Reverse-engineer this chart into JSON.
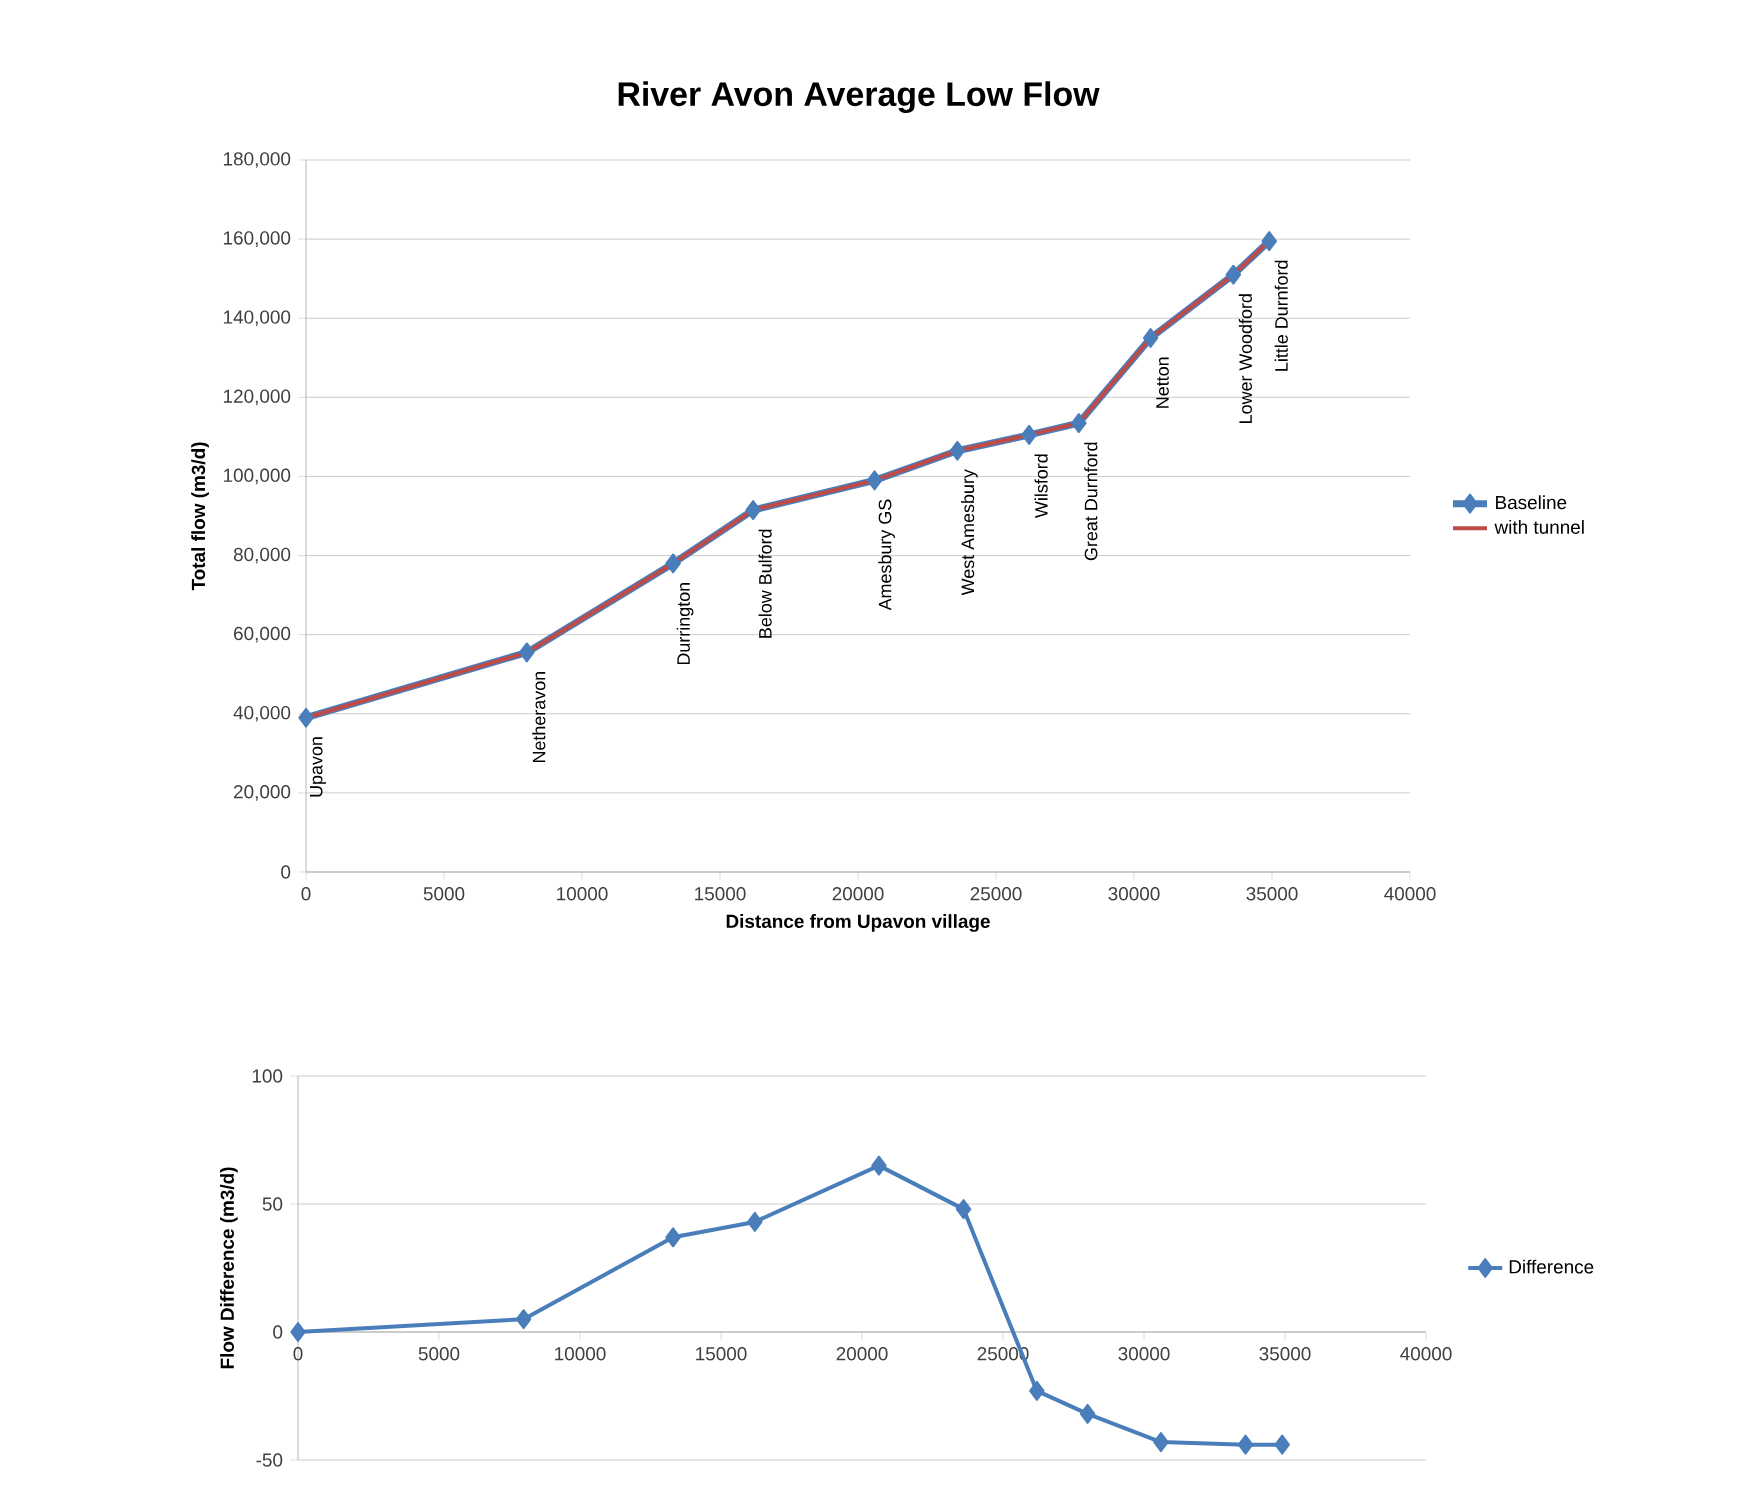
{
  "chart_data": [
    {
      "type": "line",
      "title": "River Avon Average Low Flow",
      "xlabel": "Distance from Upavon village",
      "ylabel": "Total flow (m3/d)",
      "x": [
        0,
        8000,
        13300,
        16200,
        20600,
        23600,
        26200,
        28000,
        30600,
        33600,
        34900
      ],
      "series": [
        {
          "name": "Baseline",
          "color": "#4a7ebb",
          "marker": "diamond",
          "values": [
            39000,
            55500,
            78000,
            91500,
            99000,
            106500,
            110500,
            113500,
            135000,
            151000,
            159500
          ]
        },
        {
          "name": "with tunnel",
          "color": "#be4b48",
          "marker": "none",
          "values": [
            39000,
            55500,
            78000,
            91500,
            99000,
            106500,
            110500,
            113500,
            135000,
            151000,
            159500
          ]
        }
      ],
      "xlim": [
        0,
        40000
      ],
      "xticks": [
        0,
        5000,
        10000,
        15000,
        20000,
        25000,
        30000,
        35000,
        40000
      ],
      "ylim": [
        0,
        180000
      ],
      "yticks": [
        {
          "value": 0,
          "label": "0"
        },
        {
          "value": 20000,
          "label": "20,000"
        },
        {
          "value": 40000,
          "label": "40,000"
        },
        {
          "value": 60000,
          "label": "60,000"
        },
        {
          "value": 80000,
          "label": "80,000"
        },
        {
          "value": 100000,
          "label": "100,000"
        },
        {
          "value": 120000,
          "label": "120,000"
        },
        {
          "value": 140000,
          "label": "140,000"
        },
        {
          "value": 160000,
          "label": "160,000"
        },
        {
          "value": 180000,
          "label": "180,000"
        }
      ],
      "grid": "y",
      "legend": "right",
      "line_style": "solid",
      "annotations": [
        {
          "text": "Upavon",
          "x": 0,
          "y": 39000
        },
        {
          "text": "Netheravon",
          "x": 8000,
          "y": 55500
        },
        {
          "text": "Durrington",
          "x": 13300,
          "y": 78000
        },
        {
          "text": "Below Bulford",
          "x": 16200,
          "y": 91500
        },
        {
          "text": "Amesbury GS",
          "x": 20600,
          "y": 99000
        },
        {
          "text": "West Amesbury",
          "x": 23600,
          "y": 106500
        },
        {
          "text": "Wilsford",
          "x": 26200,
          "y": 110500
        },
        {
          "text": "Great Durnford",
          "x": 28000,
          "y": 113500
        },
        {
          "text": "Netton",
          "x": 30600,
          "y": 135000
        },
        {
          "text": "Lower Woodford",
          "x": 33600,
          "y": 151000
        },
        {
          "text": "Little Durnford",
          "x": 34900,
          "y": 159500
        }
      ]
    },
    {
      "type": "line",
      "ylabel": "Flow Difference (m3/d)",
      "x": [
        0,
        8000,
        13300,
        16200,
        20600,
        23600,
        26200,
        28000,
        30600,
        33600,
        34900
      ],
      "series": [
        {
          "name": "Difference",
          "color": "#4a7ebb",
          "marker": "diamond",
          "values": [
            0,
            5,
            37,
            43,
            65,
            48,
            -23,
            -32,
            -43,
            -44,
            -44
          ]
        }
      ],
      "xlim": [
        0,
        40000
      ],
      "xticks": [
        0,
        5000,
        10000,
        15000,
        20000,
        25000,
        30000,
        35000,
        40000
      ],
      "ylim": [
        -50,
        100
      ],
      "yticks": [
        -50,
        0,
        50,
        100
      ],
      "grid": "y",
      "legend": "right",
      "line_style": "solid"
    }
  ]
}
